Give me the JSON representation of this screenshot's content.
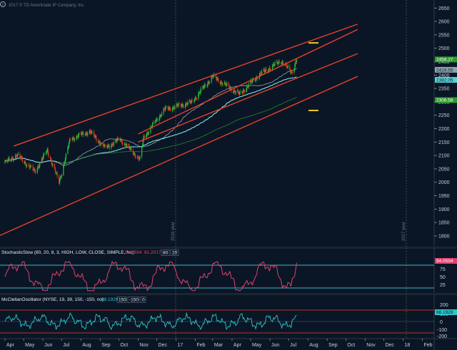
{
  "watermark": "2017 © TD Ameritrade IP Company, Inc.",
  "info_icon": "info-icon",
  "colors": {
    "background": "#0a1626",
    "up_candle": "#29c23b",
    "down_candle": "#e33b1e",
    "channel": "#e8402a",
    "ma_cyan": "#7fe3e6",
    "ma_gray": "#9aa3aa",
    "ma_green": "#2f7f2f",
    "marker": "#f2c81f",
    "stoch": "#e0406a",
    "mcclellan": "#2ec6c9",
    "panel_line": "#3fb8c8",
    "divider": "#303a46"
  },
  "price_panel": {
    "y_ticks": [
      "2650",
      "2600",
      "2550",
      "2500",
      "2450",
      "2400",
      "2350",
      "2300",
      "2250",
      "2200",
      "2150",
      "2100",
      "2050",
      "2000",
      "1950",
      "1900",
      "1850",
      "1800"
    ],
    "badges": [
      {
        "label": "2458.27",
        "value": 2458.27,
        "bg": "#2a9d2a",
        "fg": "light"
      },
      {
        "label": "2419.55",
        "value": 2419.55,
        "bg": "#8ea2b0",
        "fg": "dark"
      },
      {
        "label": "2382.05",
        "value": 2382.05,
        "bg": "#57d0d6",
        "fg": "dark"
      },
      {
        "label": "2306.58",
        "value": 2306.58,
        "bg": "#2a9d2a",
        "fg": "light"
      }
    ],
    "year_notes": [
      "2016 year",
      "2017 year"
    ]
  },
  "x_labels": [
    "Apr",
    "May",
    "Jun",
    "Jul",
    "Aug",
    "Sep",
    "Oct",
    "Nov",
    "Dec",
    "17",
    "Feb",
    "Mar",
    "Apr",
    "May",
    "Jun",
    "Jul",
    "Aug",
    "Sep",
    "Oct",
    "Nov",
    "Dec",
    "18",
    "Feb"
  ],
  "stoch_panel": {
    "title": "StochasticSlow (80, 20, 8, 3, HIGH, LOW, CLOSE, SIMPLE, No)",
    "value1": "94.0594",
    "value2": "81.2017",
    "level1": "80",
    "level2": "20",
    "y_ticks": [
      "75",
      "50",
      "25"
    ],
    "badge": "94.0594"
  },
  "mcc_panel": {
    "title": "McClellanOscillator (NYSE, 19, 39, 150, -150, no)",
    "value": "88.1929",
    "level1": "150",
    "level2": "-150",
    "level3": "0",
    "y_ticks": [
      "200",
      "100",
      "0",
      "-100",
      "-200"
    ],
    "badge": "88.1929"
  },
  "chart_data": [
    {
      "type": "candlestick",
      "title": "",
      "ylim": [
        1760,
        2680
      ],
      "x_range": [
        "2016-03-24",
        "2018-02-20"
      ],
      "ohlc_close_anchors": [
        {
          "date": "2016-04-01",
          "close": 2072
        },
        {
          "date": "2016-04-20",
          "close": 2102
        },
        {
          "date": "2016-05-19",
          "close": 2040
        },
        {
          "date": "2016-06-08",
          "close": 2119
        },
        {
          "date": "2016-06-27",
          "close": 2000
        },
        {
          "date": "2016-07-15",
          "close": 2161
        },
        {
          "date": "2016-08-15",
          "close": 2190
        },
        {
          "date": "2016-09-09",
          "close": 2128
        },
        {
          "date": "2016-10-03",
          "close": 2161
        },
        {
          "date": "2016-11-04",
          "close": 2085
        },
        {
          "date": "2016-11-10",
          "close": 2167
        },
        {
          "date": "2016-12-13",
          "close": 2271
        },
        {
          "date": "2017-01-26",
          "close": 2298
        },
        {
          "date": "2017-03-01",
          "close": 2395
        },
        {
          "date": "2017-04-13",
          "close": 2328
        },
        {
          "date": "2017-05-15",
          "close": 2402
        },
        {
          "date": "2017-06-19",
          "close": 2453
        },
        {
          "date": "2017-07-06",
          "close": 2409
        },
        {
          "date": "2017-07-14",
          "close": 2459
        }
      ],
      "channel_lines": [
        {
          "name": "",
          "from": {
            "date": "2016-04-15",
            "value": 2135
          },
          "to": {
            "date": "2017-10-20",
            "value": 2590
          }
        },
        {
          "name": "",
          "from": {
            "date": "2016-03-24",
            "value": 1802
          },
          "to": {
            "date": "2017-10-20",
            "value": 2395
          }
        },
        {
          "name": "",
          "from": {
            "date": "2016-11-01",
            "value": 2180
          },
          "to": {
            "date": "2017-10-20",
            "value": 2570
          }
        },
        {
          "name": "",
          "from": {
            "date": "2016-11-01",
            "value": 2150
          },
          "to": {
            "date": "2017-10-20",
            "value": 2480
          }
        }
      ],
      "markers": [
        {
          "date": "2017-08-10",
          "value": 2520
        },
        {
          "date": "2017-08-10",
          "value": 2268
        }
      ]
    },
    {
      "type": "line",
      "title": "StochasticSlow (80, 20, 8, 3, HIGH, LOW, CLOSE, SIMPLE, No)",
      "ylim": [
        0,
        100
      ],
      "levels": [
        80,
        20
      ],
      "series": [
        {
          "name": "",
          "last": 94.0594
        },
        {
          "name": "",
          "last": 81.2017
        }
      ]
    },
    {
      "type": "line",
      "title": "McClellanOscillator (NYSE, 19, 39, 150, -150, no)",
      "ylim": [
        -250,
        250
      ],
      "levels": [
        150,
        -150,
        0
      ],
      "series": [
        {
          "name": "",
          "last": 88.1929
        }
      ]
    }
  ]
}
